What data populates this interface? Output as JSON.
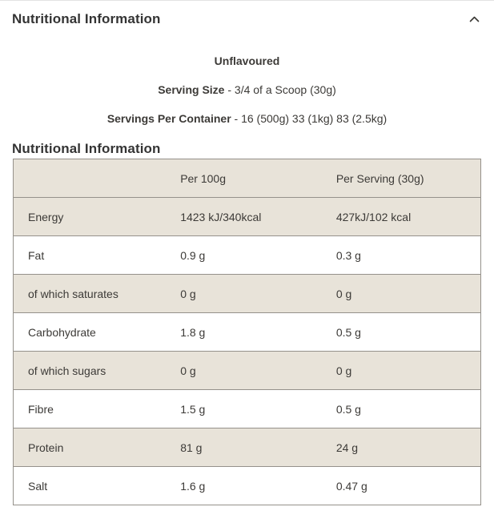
{
  "accordion": {
    "title": "Nutritional Information",
    "chevron_icon": "chevron-up"
  },
  "intro": {
    "flavour": "Unflavoured",
    "serving_size_label": "Serving Size",
    "serving_size_value": "- 3/4 of a Scoop (30g)",
    "servings_label": "Servings Per Container",
    "servings_value": "- 16 (500g) 33 (1kg) 83 (2.5kg)"
  },
  "section_title": "Nutritional Information",
  "table": {
    "columns": [
      "",
      "Per 100g",
      "Per Serving (30g)"
    ],
    "rows": [
      {
        "label": "Energy",
        "per_100g": "1423 kJ/340kcal",
        "per_serving": "427kJ/102 kcal"
      },
      {
        "label": "Fat",
        "per_100g": "0.9 g",
        "per_serving": "0.3 g"
      },
      {
        "label": "of which saturates",
        "per_100g": "0 g",
        "per_serving": "0 g"
      },
      {
        "label": "Carbohydrate",
        "per_100g": "1.8 g",
        "per_serving": "0.5 g"
      },
      {
        "label": "of which sugars",
        "per_100g": "0 g",
        "per_serving": "0 g"
      },
      {
        "label": "Fibre",
        "per_100g": "1.5 g",
        "per_serving": "0.5 g"
      },
      {
        "label": "Protein",
        "per_100g": "81 g",
        "per_serving": "24 g"
      },
      {
        "label": "Salt",
        "per_100g": "1.6 g",
        "per_serving": "0.47 g"
      }
    ]
  },
  "colors": {
    "row_beige": "#e8e3d9",
    "row_white": "#ffffff",
    "table_border": "#95918b",
    "text": "#3a3834"
  }
}
